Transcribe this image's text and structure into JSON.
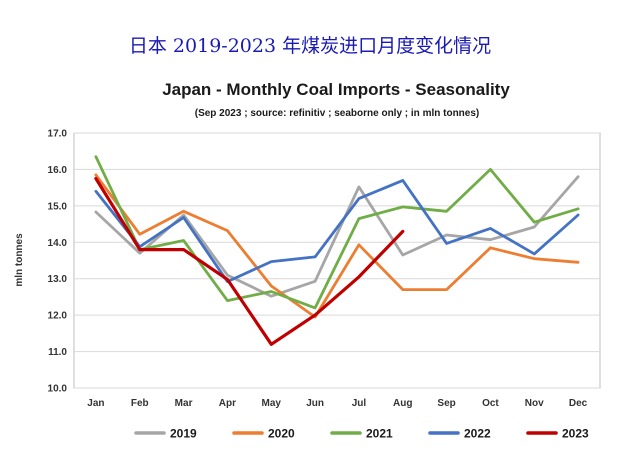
{
  "header": {
    "cn_title": "日本 2019-2023 年煤炭进口月度变化情况"
  },
  "chart_data": {
    "type": "line",
    "title": "Japan - Monthly Coal Imports - Seasonality",
    "subtitle": "(Sep 2023 ; source: refinitiv ; seaborne only ; in mln tonnes)",
    "ylabel": "mln tonnes",
    "xlabel": "",
    "categories": [
      "Jan",
      "Feb",
      "Mar",
      "Apr",
      "May",
      "Jun",
      "Jul",
      "Aug",
      "Sep",
      "Oct",
      "Nov",
      "Dec"
    ],
    "ylim": [
      10.0,
      17.0
    ],
    "yticks": [
      10.0,
      11.0,
      12.0,
      13.0,
      14.0,
      15.0,
      16.0,
      17.0
    ],
    "grid": true,
    "legend_position": "bottom",
    "series": [
      {
        "name": "2019",
        "color": "#a6a6a6",
        "values": [
          14.83,
          13.7,
          14.75,
          13.1,
          12.52,
          12.93,
          15.52,
          13.65,
          14.2,
          14.07,
          14.42,
          15.8
        ]
      },
      {
        "name": "2020",
        "color": "#ed7d31",
        "values": [
          15.85,
          14.22,
          14.85,
          14.32,
          12.8,
          11.95,
          13.93,
          12.7,
          12.7,
          13.85,
          13.55,
          13.45
        ]
      },
      {
        "name": "2021",
        "color": "#70ad47",
        "values": [
          16.35,
          13.8,
          14.05,
          12.4,
          12.65,
          12.2,
          14.65,
          14.97,
          14.85,
          16.0,
          14.55,
          14.92
        ]
      },
      {
        "name": "2022",
        "color": "#4472c4",
        "values": [
          15.4,
          13.88,
          14.68,
          12.92,
          13.47,
          13.6,
          15.2,
          15.7,
          13.97,
          14.38,
          13.68,
          14.75
        ]
      },
      {
        "name": "2023",
        "color": "#c00000",
        "values": [
          15.75,
          13.8,
          13.8,
          12.98,
          11.2,
          12.0,
          13.05,
          14.3,
          null,
          null,
          null,
          null
        ]
      }
    ]
  }
}
